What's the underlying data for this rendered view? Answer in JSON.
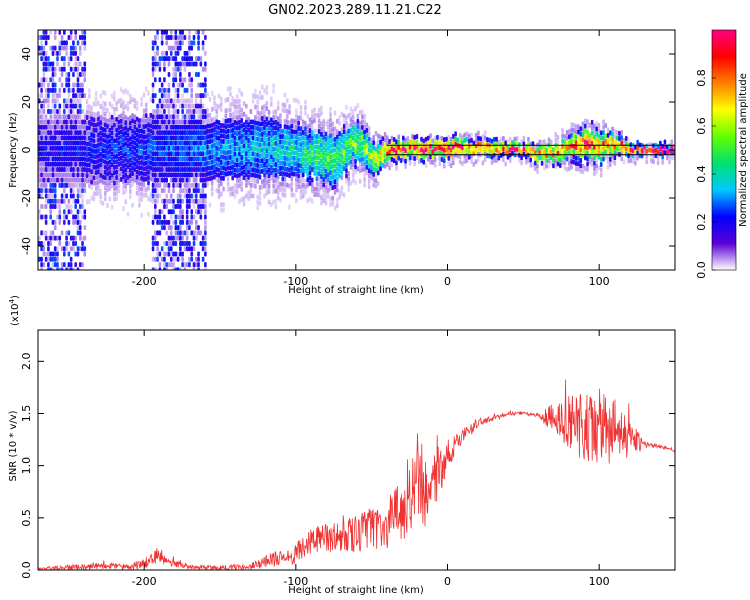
{
  "figure": {
    "title": "GN02.2023.289.11.21.C22"
  },
  "chart_data": [
    {
      "type": "heatmap",
      "title": "GN02.2023.289.11.21.C22",
      "xlabel": "Height of straight line (km)",
      "ylabel": "Frequency (Hz)",
      "xlim": [
        -270,
        150
      ],
      "ylim": [
        -50,
        50
      ],
      "x_ticks": [
        -200,
        -100,
        0,
        100
      ],
      "x_tick_labels": [
        "-200",
        "-100",
        "0",
        "100"
      ],
      "y_ticks": [
        -40,
        -20,
        0,
        20,
        40
      ],
      "y_tick_labels": [
        "-40",
        "-20",
        "0",
        "20",
        "40"
      ],
      "reference_lines_hz": [
        2,
        -2
      ],
      "colorbar": {
        "label": "Normalized spectral amplitude",
        "range": [
          0,
          1
        ],
        "ticks": [
          0.0,
          0.2,
          0.4,
          0.6,
          0.8
        ],
        "tick_labels": [
          "0.0",
          "0.2",
          "0.4",
          "0.6",
          "0.8"
        ],
        "colors": [
          "#ffffff",
          "#5a00d6",
          "#0000ff",
          "#00c8ff",
          "#00e070",
          "#60ff00",
          "#ffff00",
          "#ff8000",
          "#ff0000",
          "#ff0080"
        ]
      },
      "band_profile": {
        "x_km": [
          -270,
          -200,
          -160,
          -120,
          -100,
          -85,
          -75,
          -60,
          -50,
          -40,
          -20,
          0,
          50,
          60,
          70,
          80,
          90,
          100,
          110,
          120
        ],
        "center_hz": [
          0,
          0,
          0,
          1,
          -1,
          -2,
          -4,
          4,
          -3,
          0,
          0,
          1,
          0,
          -2,
          -1,
          1,
          3,
          1,
          2,
          0
        ],
        "halfwidth_hz": [
          14,
          14,
          12,
          12,
          10,
          9,
          9,
          7,
          6,
          3,
          3,
          3,
          2,
          3,
          3,
          4,
          5,
          5,
          3,
          2
        ],
        "peak_amplitude": [
          0.2,
          0.25,
          0.3,
          0.35,
          0.4,
          0.5,
          0.5,
          0.55,
          0.6,
          0.9,
          0.92,
          0.9,
          0.9,
          0.7,
          0.75,
          0.8,
          0.85,
          0.8,
          0.85,
          0.9
        ]
      },
      "broadband_bursts_km": [
        [
          -270,
          -240
        ],
        [
          -195,
          -160
        ]
      ]
    },
    {
      "type": "line",
      "xlabel": "Height of straight line (km)",
      "ylabel": "SNR (10 * v/v)",
      "scale_label": "(x10",
      "scale_exponent": "4",
      "xlim": [
        -270,
        150
      ],
      "ylim": [
        0,
        2.3
      ],
      "x_ticks": [
        -200,
        -100,
        0,
        100
      ],
      "x_tick_labels": [
        "-200",
        "-100",
        "0",
        "100"
      ],
      "y_ticks": [
        0.0,
        0.5,
        1.0,
        1.5,
        2.0
      ],
      "y_tick_labels": [
        "0.0",
        "0.5",
        "1.0",
        "1.5",
        "2.0"
      ],
      "color": "#ef3232",
      "series": [
        {
          "x": [
            -270,
            -250,
            -230,
            -210,
            -200,
            -190,
            -185,
            -170,
            -150,
            -130,
            -110,
            -100,
            -90,
            -80,
            -70,
            -60,
            -50,
            -40,
            -30,
            -25,
            -20,
            -15,
            -10,
            -5,
            0,
            5,
            10,
            20,
            30,
            40,
            50,
            60,
            70,
            80,
            90,
            100,
            110,
            120,
            130,
            140,
            150
          ],
          "y": [
            0.01,
            0.02,
            0.04,
            0.03,
            0.06,
            0.15,
            0.08,
            0.03,
            0.02,
            0.04,
            0.12,
            0.15,
            0.28,
            0.3,
            0.32,
            0.35,
            0.4,
            0.45,
            0.55,
            0.75,
            0.9,
            0.7,
            0.85,
            0.95,
            1.08,
            1.2,
            1.3,
            1.4,
            1.46,
            1.5,
            1.5,
            1.48,
            1.45,
            1.42,
            1.35,
            1.3,
            1.35,
            1.25,
            1.2,
            1.18,
            1.15
          ],
          "noise_amplitude": [
            0.01,
            0.03,
            0.03,
            0.03,
            0.05,
            0.08,
            0.04,
            0.02,
            0.02,
            0.04,
            0.08,
            0.1,
            0.12,
            0.15,
            0.15,
            0.18,
            0.2,
            0.25,
            0.3,
            0.4,
            0.45,
            0.35,
            0.3,
            0.25,
            0.12,
            0.1,
            0.08,
            0.05,
            0.03,
            0.02,
            0.02,
            0.02,
            0.15,
            0.25,
            0.35,
            0.4,
            0.3,
            0.2,
            0.03,
            0.02,
            0.02
          ]
        }
      ]
    }
  ]
}
